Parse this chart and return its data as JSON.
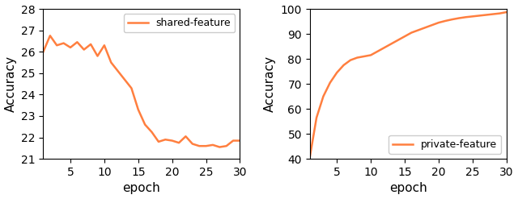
{
  "line_color": "#FF7F3F",
  "left": {
    "label": "shared-feature",
    "xlabel": "epoch",
    "ylabel": "Accuracy",
    "xlim": [
      1,
      30
    ],
    "ylim": [
      21,
      28
    ],
    "yticks": [
      21,
      22,
      23,
      24,
      25,
      26,
      27,
      28
    ],
    "xticks": [
      5,
      10,
      15,
      20,
      25,
      30
    ],
    "legend_loc": "upper right",
    "x": [
      1,
      2,
      3,
      4,
      5,
      6,
      7,
      8,
      9,
      10,
      11,
      12,
      13,
      14,
      15,
      16,
      17,
      18,
      19,
      20,
      21,
      22,
      23,
      24,
      25,
      26,
      27,
      28,
      29,
      30
    ],
    "y": [
      26.0,
      26.75,
      26.3,
      26.4,
      26.2,
      26.45,
      26.1,
      26.35,
      25.8,
      26.3,
      25.5,
      25.1,
      24.7,
      24.3,
      23.3,
      22.6,
      22.25,
      21.8,
      21.9,
      21.85,
      21.75,
      22.05,
      21.7,
      21.6,
      21.6,
      21.65,
      21.55,
      21.6,
      21.85,
      21.85
    ]
  },
  "right": {
    "label": "private-feature",
    "xlabel": "epoch",
    "ylabel": "Accuracy",
    "xlim": [
      1,
      30
    ],
    "ylim": [
      40,
      100
    ],
    "yticks": [
      40,
      50,
      60,
      70,
      80,
      90,
      100
    ],
    "xticks": [
      5,
      10,
      15,
      20,
      25,
      30
    ],
    "legend_loc": "lower right",
    "x": [
      1,
      2,
      3,
      4,
      5,
      6,
      7,
      8,
      9,
      10,
      11,
      12,
      13,
      14,
      15,
      16,
      17,
      18,
      19,
      20,
      21,
      22,
      23,
      24,
      25,
      26,
      27,
      28,
      29,
      30
    ],
    "y": [
      40.5,
      56.5,
      65.0,
      70.5,
      74.5,
      77.5,
      79.5,
      80.5,
      81.0,
      81.5,
      83.0,
      84.5,
      86.0,
      87.5,
      89.0,
      90.5,
      91.5,
      92.5,
      93.5,
      94.5,
      95.2,
      95.8,
      96.3,
      96.7,
      97.0,
      97.3,
      97.6,
      97.9,
      98.2,
      98.7
    ]
  },
  "figsize": [
    6.4,
    2.47
  ],
  "dpi": 100,
  "tick_fontsize": 10,
  "label_fontsize": 11,
  "legend_fontsize": 9,
  "linewidth": 1.8
}
